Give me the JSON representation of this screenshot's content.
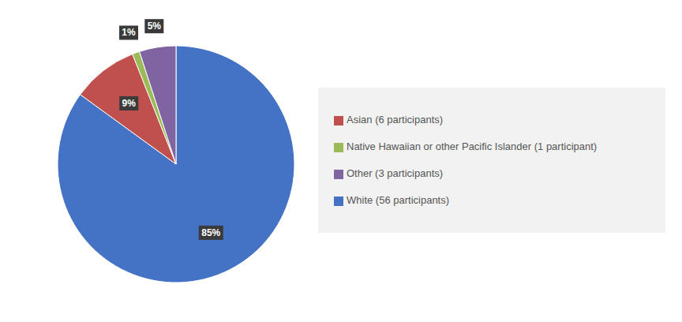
{
  "chart_data": {
    "type": "pie",
    "categories": [
      "White (56 participants)",
      "Asian (6 participants)",
      "Native Hawaiian or other Pacific Islander (1 participant)",
      "Other (3 participants)"
    ],
    "values": [
      85,
      9,
      1,
      5
    ],
    "value_labels": [
      "85%",
      "9%",
      "1%",
      "5%"
    ],
    "colors": [
      "#4472C4",
      "#C0504D",
      "#9BBB59",
      "#8064A2"
    ],
    "data_labels": true,
    "legend": "right"
  }
}
